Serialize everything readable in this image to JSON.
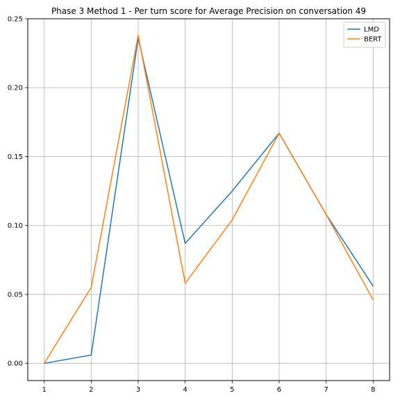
{
  "chart_data": {
    "type": "line",
    "title": "Phase 3 Method 1 - Per turn score for Average Precision on conversation 49",
    "xlabel": "",
    "ylabel": "",
    "x": [
      1,
      2,
      3,
      4,
      5,
      6,
      7,
      8
    ],
    "xlim": [
      0.65,
      8.35
    ],
    "ylim": [
      -0.0125,
      0.25
    ],
    "xticks": [
      1,
      2,
      3,
      4,
      5,
      6,
      7,
      8
    ],
    "yticks": [
      0.0,
      0.05,
      0.1,
      0.15,
      0.2,
      0.25
    ],
    "ytick_labels": [
      "0.00",
      "0.05",
      "0.10",
      "0.15",
      "0.20",
      "0.25"
    ],
    "grid": true,
    "legend_position": "top-right",
    "series": [
      {
        "name": "LMD",
        "color": "#1f77b4",
        "values": [
          0.0,
          0.006,
          0.236,
          0.087,
          0.125,
          0.167,
          0.108,
          0.056
        ]
      },
      {
        "name": "BERT",
        "color": "#ff7f0e",
        "values": [
          0.0,
          0.055,
          0.238,
          0.058,
          0.104,
          0.167,
          0.108,
          0.046
        ]
      }
    ]
  }
}
